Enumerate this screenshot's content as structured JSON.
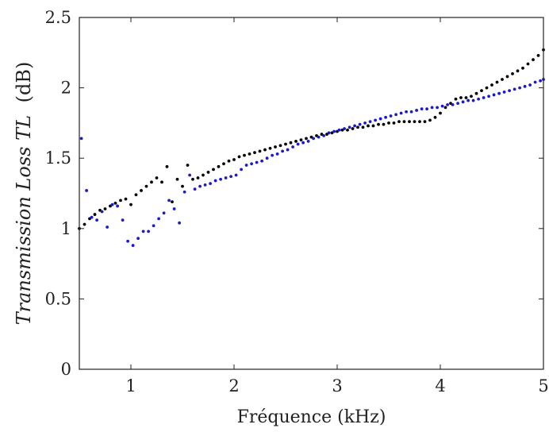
{
  "chart_data": {
    "type": "scatter",
    "xlabel": "Fréquence (kHz)",
    "ylabel_italic": "Transmission Loss TL",
    "ylabel_unit": "(dB)",
    "xlim": [
      0.5,
      5
    ],
    "ylim": [
      0,
      2.5
    ],
    "x_ticks": [
      1,
      2,
      3,
      4,
      5
    ],
    "x_tick_labels": [
      "1",
      "2",
      "3",
      "4",
      "5"
    ],
    "y_ticks": [
      0,
      0.5,
      1,
      1.5,
      2,
      2.5
    ],
    "y_tick_labels": [
      "0",
      "0.5",
      "1",
      "1.5",
      "2",
      "2.5"
    ],
    "grid": false,
    "series": [
      {
        "color": "#000000",
        "x": [
          0.5,
          0.55,
          0.6,
          0.65,
          0.7,
          0.75,
          0.8,
          0.85,
          0.9,
          0.95,
          1.0,
          1.05,
          1.1,
          1.15,
          1.2,
          1.25,
          1.3,
          1.35,
          1.4,
          1.45,
          1.5,
          1.55,
          1.6,
          1.65,
          1.7,
          1.75,
          1.8,
          1.85,
          1.9,
          1.95,
          2.0,
          2.05,
          2.1,
          2.15,
          2.2,
          2.25,
          2.3,
          2.35,
          2.4,
          2.45,
          2.5,
          2.55,
          2.6,
          2.65,
          2.7,
          2.75,
          2.8,
          2.85,
          2.9,
          2.95,
          3.0,
          3.05,
          3.1,
          3.15,
          3.2,
          3.25,
          3.3,
          3.35,
          3.4,
          3.45,
          3.5,
          3.55,
          3.6,
          3.65,
          3.7,
          3.75,
          3.8,
          3.85,
          3.9,
          3.95,
          4.0,
          4.05,
          4.1,
          4.15,
          4.2,
          4.25,
          4.3,
          4.35,
          4.4,
          4.45,
          4.5,
          4.55,
          4.6,
          4.65,
          4.7,
          4.75,
          4.8,
          4.85,
          4.9,
          4.95,
          5.0
        ],
        "y": [
          1.0,
          1.03,
          1.07,
          1.1,
          1.13,
          1.14,
          1.16,
          1.18,
          1.2,
          1.21,
          1.17,
          1.24,
          1.27,
          1.3,
          1.33,
          1.36,
          1.33,
          1.44,
          1.19,
          1.35,
          1.3,
          1.45,
          1.35,
          1.36,
          1.38,
          1.4,
          1.42,
          1.44,
          1.46,
          1.48,
          1.49,
          1.51,
          1.52,
          1.53,
          1.54,
          1.55,
          1.56,
          1.57,
          1.58,
          1.59,
          1.6,
          1.61,
          1.62,
          1.63,
          1.64,
          1.65,
          1.66,
          1.67,
          1.67,
          1.68,
          1.69,
          1.7,
          1.7,
          1.71,
          1.72,
          1.72,
          1.73,
          1.73,
          1.74,
          1.74,
          1.75,
          1.75,
          1.76,
          1.76,
          1.76,
          1.76,
          1.76,
          1.76,
          1.77,
          1.79,
          1.82,
          1.86,
          1.89,
          1.92,
          1.93,
          1.93,
          1.94,
          1.96,
          1.98,
          2.0,
          2.02,
          2.04,
          2.06,
          2.08,
          2.1,
          2.12,
          2.14,
          2.17,
          2.2,
          2.23,
          2.27
        ]
      },
      {
        "color": "#1a1acc",
        "x": [
          0.52,
          0.57,
          0.62,
          0.67,
          0.72,
          0.77,
          0.82,
          0.87,
          0.92,
          0.97,
          1.02,
          1.07,
          1.12,
          1.17,
          1.22,
          1.27,
          1.32,
          1.37,
          1.42,
          1.47,
          1.52,
          1.57,
          1.62,
          1.67,
          1.72,
          1.77,
          1.82,
          1.87,
          1.92,
          1.97,
          2.02,
          2.07,
          2.12,
          2.17,
          2.22,
          2.27,
          2.32,
          2.37,
          2.42,
          2.47,
          2.52,
          2.57,
          2.62,
          2.67,
          2.72,
          2.77,
          2.82,
          2.87,
          2.92,
          2.97,
          3.02,
          3.07,
          3.12,
          3.17,
          3.22,
          3.27,
          3.32,
          3.37,
          3.42,
          3.47,
          3.52,
          3.57,
          3.62,
          3.67,
          3.72,
          3.77,
          3.82,
          3.87,
          3.92,
          3.97,
          4.02,
          4.07,
          4.12,
          4.17,
          4.22,
          4.27,
          4.32,
          4.37,
          4.42,
          4.47,
          4.52,
          4.57,
          4.62,
          4.67,
          4.72,
          4.77,
          4.82,
          4.87,
          4.92,
          4.97,
          5.0
        ],
        "y": [
          1.64,
          1.27,
          1.08,
          1.06,
          1.12,
          1.01,
          1.17,
          1.16,
          1.06,
          0.91,
          0.88,
          0.93,
          0.98,
          0.98,
          1.02,
          1.07,
          1.11,
          1.2,
          1.14,
          1.04,
          1.26,
          1.38,
          1.28,
          1.3,
          1.31,
          1.32,
          1.34,
          1.35,
          1.36,
          1.37,
          1.38,
          1.42,
          1.45,
          1.46,
          1.47,
          1.48,
          1.5,
          1.52,
          1.53,
          1.55,
          1.56,
          1.58,
          1.6,
          1.61,
          1.62,
          1.64,
          1.65,
          1.66,
          1.68,
          1.69,
          1.7,
          1.71,
          1.72,
          1.73,
          1.74,
          1.75,
          1.76,
          1.77,
          1.78,
          1.79,
          1.8,
          1.81,
          1.82,
          1.83,
          1.83,
          1.84,
          1.85,
          1.85,
          1.86,
          1.86,
          1.87,
          1.88,
          1.88,
          1.89,
          1.9,
          1.91,
          1.91,
          1.92,
          1.93,
          1.94,
          1.95,
          1.96,
          1.97,
          1.98,
          1.99,
          2.0,
          2.01,
          2.02,
          2.04,
          2.05,
          2.06
        ]
      }
    ]
  }
}
